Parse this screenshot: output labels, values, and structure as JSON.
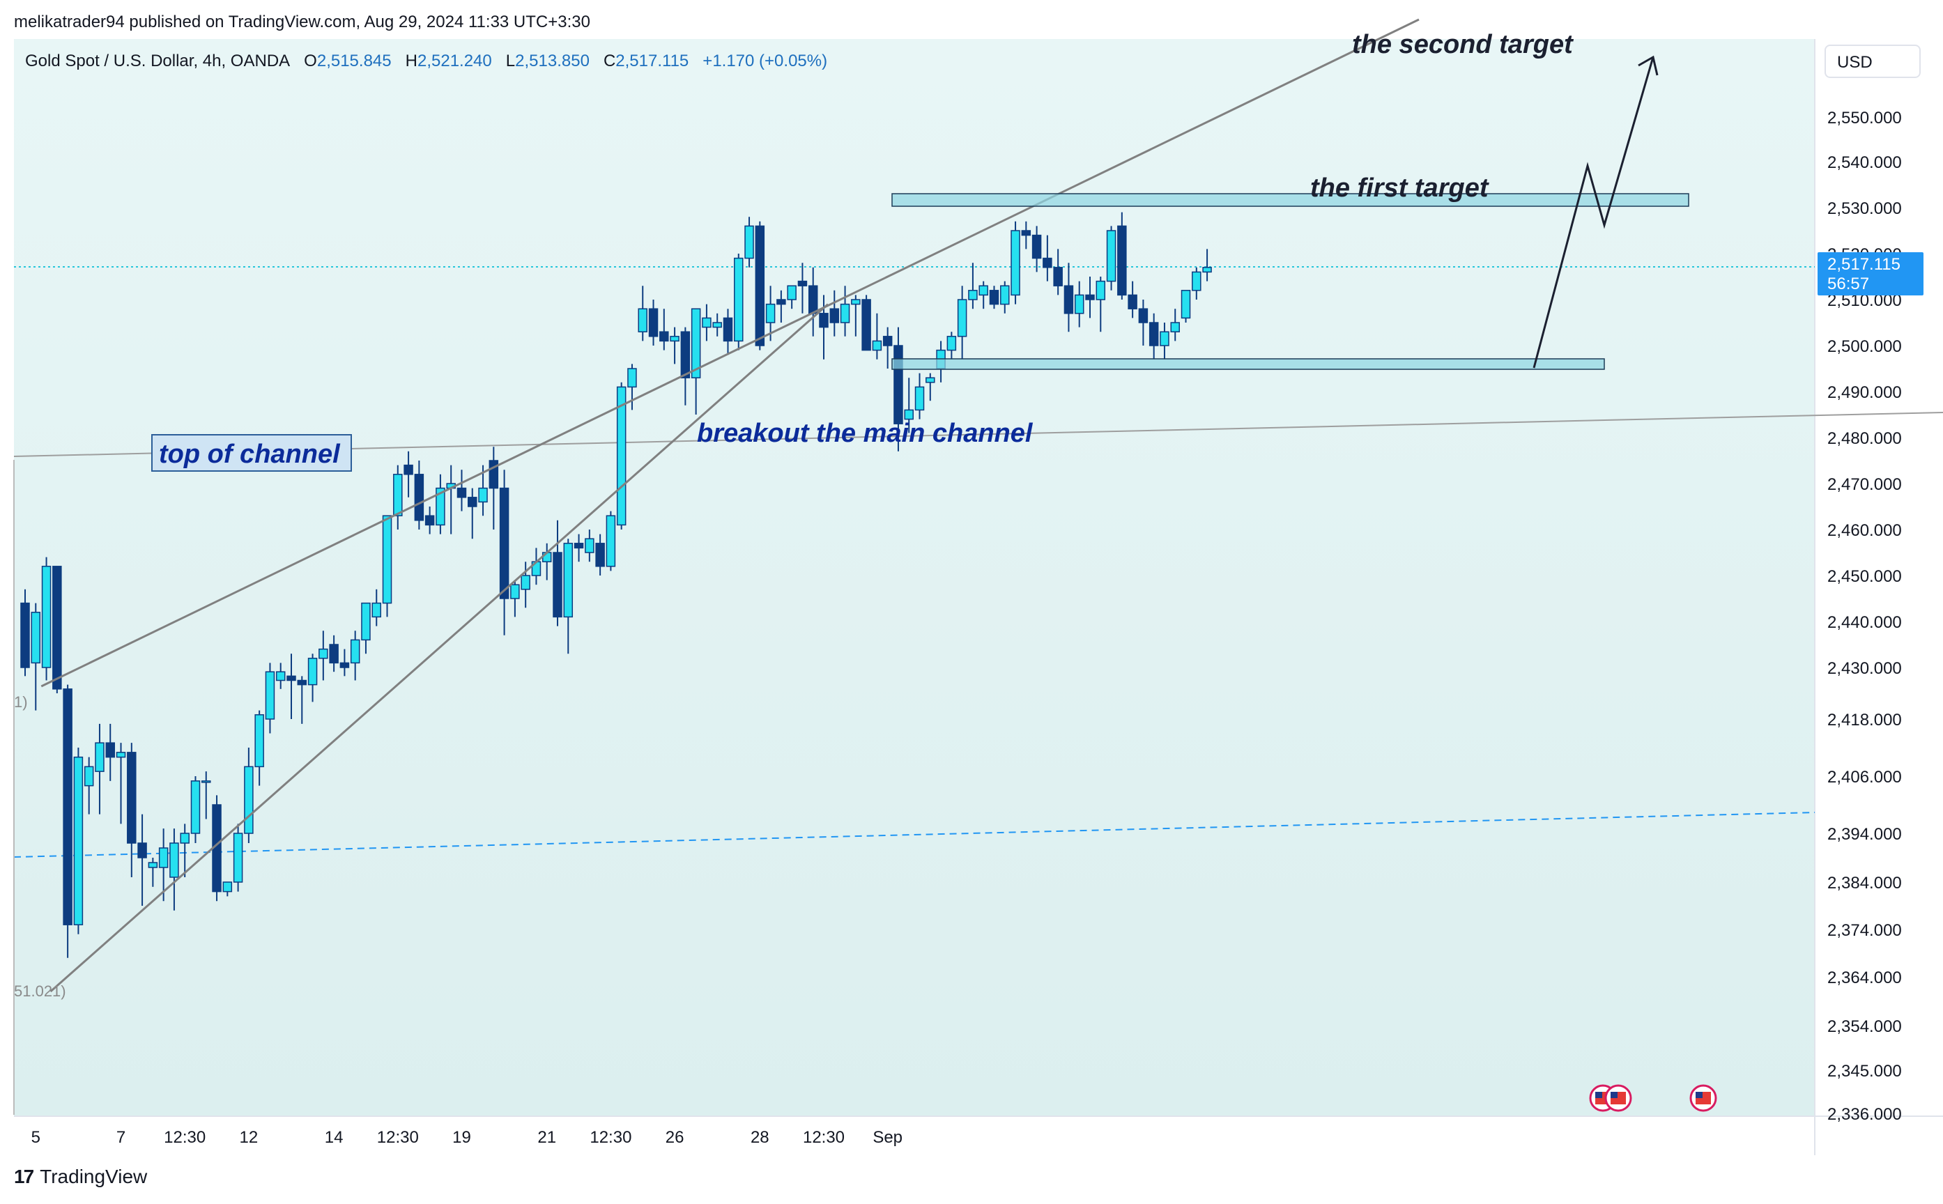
{
  "publisher": "melikatrader94 published on TradingView.com, Aug 29, 2024 11:33 UTC+3:30",
  "header": {
    "symbol": "Gold Spot / U.S. Dollar, 4h, OANDA",
    "o_label": "O",
    "o": "2,515.845",
    "h_label": "H",
    "h": "2,521.240",
    "l_label": "L",
    "l": "2,513.850",
    "c_label": "C",
    "c": "2,517.115",
    "change": "+1.170 (+0.05%)"
  },
  "currency": "USD",
  "price_tag": {
    "price": "2,517.115",
    "countdown": "56:57"
  },
  "footer": {
    "brand": "TradingView"
  },
  "colors": {
    "up": "#26e0f0",
    "down": "#0d3c80",
    "bg_top": "#e8f5f5",
    "bg_bottom": "#dff0f0",
    "blue_text": "#0b2b9a"
  },
  "chart_data": {
    "type": "candlestick",
    "title": "Gold Spot / U.S. Dollar, 4h, OANDA",
    "y_ticks": [
      {
        "label": "2,550.000",
        "v": 2550
      },
      {
        "label": "2,540.000",
        "v": 2540
      },
      {
        "label": "2,530.000",
        "v": 2530
      },
      {
        "label": "2,520.000",
        "v": 2520
      },
      {
        "label": "2,510.000",
        "v": 2510
      },
      {
        "label": "2,500.000",
        "v": 2500
      },
      {
        "label": "2,490.000",
        "v": 2490
      },
      {
        "label": "2,480.000",
        "v": 2480
      },
      {
        "label": "2,470.000",
        "v": 2470
      },
      {
        "label": "2,460.000",
        "v": 2460
      },
      {
        "label": "2,450.000",
        "v": 2450
      },
      {
        "label": "2,440.000",
        "v": 2440
      },
      {
        "label": "2,430.000",
        "v": 2430
      },
      {
        "label": "2,418.000",
        "v": 2418
      },
      {
        "label": "2,406.000",
        "v": 2406
      },
      {
        "label": "2,394.000",
        "v": 2394
      },
      {
        "label": "2,384.000",
        "v": 2384
      },
      {
        "label": "2,374.000",
        "v": 2374
      },
      {
        "label": "2,364.000",
        "v": 2364
      },
      {
        "label": "2,354.000",
        "v": 2354
      },
      {
        "label": "2,345.000",
        "v": 2345
      },
      {
        "label": "2,336.000",
        "v": 2336
      }
    ],
    "x_ticks": [
      {
        "label": "5",
        "i": 1
      },
      {
        "label": "7",
        "i": 9
      },
      {
        "label": "12:30",
        "i": 15
      },
      {
        "label": "12",
        "i": 21
      },
      {
        "label": "14",
        "i": 29
      },
      {
        "label": "12:30",
        "i": 35
      },
      {
        "label": "19",
        "i": 41
      },
      {
        "label": "21",
        "i": 49
      },
      {
        "label": "12:30",
        "i": 55
      },
      {
        "label": "26",
        "i": 61
      },
      {
        "label": "28",
        "i": 69
      },
      {
        "label": "12:30",
        "i": 75
      },
      {
        "label": "Sep",
        "i": 81
      }
    ],
    "candles": [
      [
        2444,
        2447,
        2428,
        2430
      ],
      [
        2431,
        2444,
        2420,
        2442
      ],
      [
        2430,
        2454,
        2427,
        2452
      ],
      [
        2452,
        2452,
        2424,
        2425
      ],
      [
        2425,
        2426,
        2368,
        2375
      ],
      [
        2375,
        2412,
        2373,
        2410
      ],
      [
        2404,
        2410,
        2398,
        2408
      ],
      [
        2407,
        2417,
        2398,
        2413
      ],
      [
        2413,
        2417,
        2405,
        2410
      ],
      [
        2410,
        2413,
        2396,
        2411
      ],
      [
        2411,
        2413,
        2385,
        2392
      ],
      [
        2392,
        2398,
        2379,
        2389
      ],
      [
        2387,
        2389,
        2383,
        2388
      ],
      [
        2387,
        2395,
        2380,
        2391
      ],
      [
        2385,
        2395,
        2378,
        2392
      ],
      [
        2392,
        2396,
        2385,
        2394
      ],
      [
        2394,
        2406,
        2392,
        2405
      ],
      [
        2405,
        2407,
        2397,
        2405
      ],
      [
        2400,
        2402,
        2380,
        2382
      ],
      [
        2382,
        2384,
        2381,
        2384
      ],
      [
        2384,
        2396,
        2382,
        2394
      ],
      [
        2394,
        2412,
        2392,
        2408
      ],
      [
        2408,
        2420,
        2404,
        2419
      ],
      [
        2418,
        2431,
        2415,
        2429
      ],
      [
        2427,
        2431,
        2425,
        2429
      ],
      [
        2428,
        2433,
        2418,
        2427
      ],
      [
        2427,
        2428,
        2417,
        2426
      ],
      [
        2426,
        2433,
        2422,
        2432
      ],
      [
        2432,
        2438,
        2427,
        2434
      ],
      [
        2435,
        2437,
        2429,
        2431
      ],
      [
        2431,
        2434,
        2428,
        2430
      ],
      [
        2431,
        2438,
        2427,
        2436
      ],
      [
        2436,
        2444,
        2433,
        2444
      ],
      [
        2441,
        2447,
        2439,
        2444
      ],
      [
        2444,
        2462,
        2441,
        2463
      ],
      [
        2463,
        2474,
        2460,
        2472
      ],
      [
        2474,
        2477,
        2467,
        2472
      ],
      [
        2472,
        2475,
        2460,
        2462
      ],
      [
        2463,
        2465,
        2459,
        2461
      ],
      [
        2461,
        2472,
        2459,
        2469
      ],
      [
        2469,
        2474,
        2459,
        2470
      ],
      [
        2469,
        2473,
        2464,
        2467
      ],
      [
        2467,
        2469,
        2458,
        2465
      ],
      [
        2466,
        2474,
        2463,
        2469
      ],
      [
        2475,
        2478,
        2460,
        2469
      ],
      [
        2469,
        2473,
        2437,
        2445
      ],
      [
        2445,
        2449,
        2441,
        2448
      ],
      [
        2447,
        2453,
        2443,
        2450
      ],
      [
        2450,
        2456,
        2448,
        2453
      ],
      [
        2453,
        2457,
        2449,
        2455
      ],
      [
        2455,
        2462,
        2439,
        2441
      ],
      [
        2441,
        2458,
        2433,
        2457
      ],
      [
        2457,
        2459,
        2453,
        2456
      ],
      [
        2455,
        2460,
        2453,
        2458
      ],
      [
        2457,
        2459,
        2450,
        2452
      ],
      [
        2452,
        2464,
        2451,
        2463
      ],
      [
        2461,
        2492,
        2460,
        2491
      ],
      [
        2491,
        2496,
        2486,
        2495
      ],
      [
        2503,
        2513,
        2501,
        2508
      ],
      [
        2508,
        2510,
        2500,
        2502
      ],
      [
        2503,
        2508,
        2499,
        2501
      ],
      [
        2501,
        2504,
        2496,
        2502
      ],
      [
        2503,
        2504,
        2487,
        2493
      ],
      [
        2493,
        2508,
        2485,
        2508
      ],
      [
        2504,
        2509,
        2501,
        2506
      ],
      [
        2504,
        2507,
        2502,
        2505
      ],
      [
        2506,
        2508,
        2498,
        2501
      ],
      [
        2501,
        2520,
        2499,
        2519
      ],
      [
        2519,
        2528,
        2517,
        2526
      ],
      [
        2526,
        2527,
        2499,
        2500
      ],
      [
        2505,
        2513,
        2501,
        2509
      ],
      [
        2510,
        2512,
        2505,
        2509
      ],
      [
        2510,
        2513,
        2508,
        2513
      ],
      [
        2514,
        2518,
        2507,
        2513
      ],
      [
        2513,
        2517,
        2502,
        2507
      ],
      [
        2507,
        2511,
        2497,
        2504
      ],
      [
        2508,
        2512,
        2502,
        2505
      ],
      [
        2505,
        2513,
        2502,
        2509
      ],
      [
        2509,
        2511,
        2502,
        2510
      ],
      [
        2510,
        2511,
        2499,
        2499
      ],
      [
        2499,
        2507,
        2497,
        2501
      ],
      [
        2502,
        2504,
        2495,
        2500
      ],
      [
        2500,
        2504,
        2477,
        2483
      ],
      [
        2484,
        2493,
        2481,
        2486
      ],
      [
        2486,
        2494,
        2484,
        2491
      ],
      [
        2492,
        2494,
        2488,
        2493
      ],
      [
        2495,
        2501,
        2492,
        2499
      ],
      [
        2499,
        2503,
        2497,
        2502
      ],
      [
        2502,
        2513,
        2497,
        2510
      ],
      [
        2510,
        2518,
        2508,
        2512
      ],
      [
        2511,
        2514,
        2508,
        2513
      ],
      [
        2512,
        2513,
        2508,
        2509
      ],
      [
        2509,
        2514,
        2507,
        2513
      ],
      [
        2511,
        2527,
        2509,
        2525
      ],
      [
        2525,
        2527,
        2521,
        2524
      ],
      [
        2524,
        2526,
        2516,
        2519
      ],
      [
        2519,
        2524,
        2514,
        2517
      ],
      [
        2517,
        2521,
        2511,
        2513
      ],
      [
        2513,
        2518,
        2503,
        2507
      ],
      [
        2507,
        2514,
        2504,
        2511
      ],
      [
        2511,
        2515,
        2506,
        2510
      ],
      [
        2510,
        2515,
        2503,
        2514
      ],
      [
        2514,
        2526,
        2512,
        2525
      ],
      [
        2526,
        2529,
        2510,
        2511
      ],
      [
        2511,
        2514,
        2506,
        2508
      ],
      [
        2508,
        2510,
        2500,
        2505
      ],
      [
        2505,
        2507,
        2497,
        2500
      ],
      [
        2500,
        2505,
        2497,
        2503
      ],
      [
        2503,
        2508,
        2501,
        2505
      ],
      [
        2506,
        2512,
        2505,
        2512
      ],
      [
        2512,
        2517,
        2510,
        2516
      ],
      [
        2516,
        2521,
        2514,
        2517
      ]
    ],
    "annotations": [
      {
        "text": "top of channel"
      },
      {
        "text": "breakout the main channel"
      },
      {
        "text": "the first target"
      },
      {
        "text": "the second target"
      }
    ],
    "pane_labels": [
      "1)",
      "51.021)"
    ]
  }
}
